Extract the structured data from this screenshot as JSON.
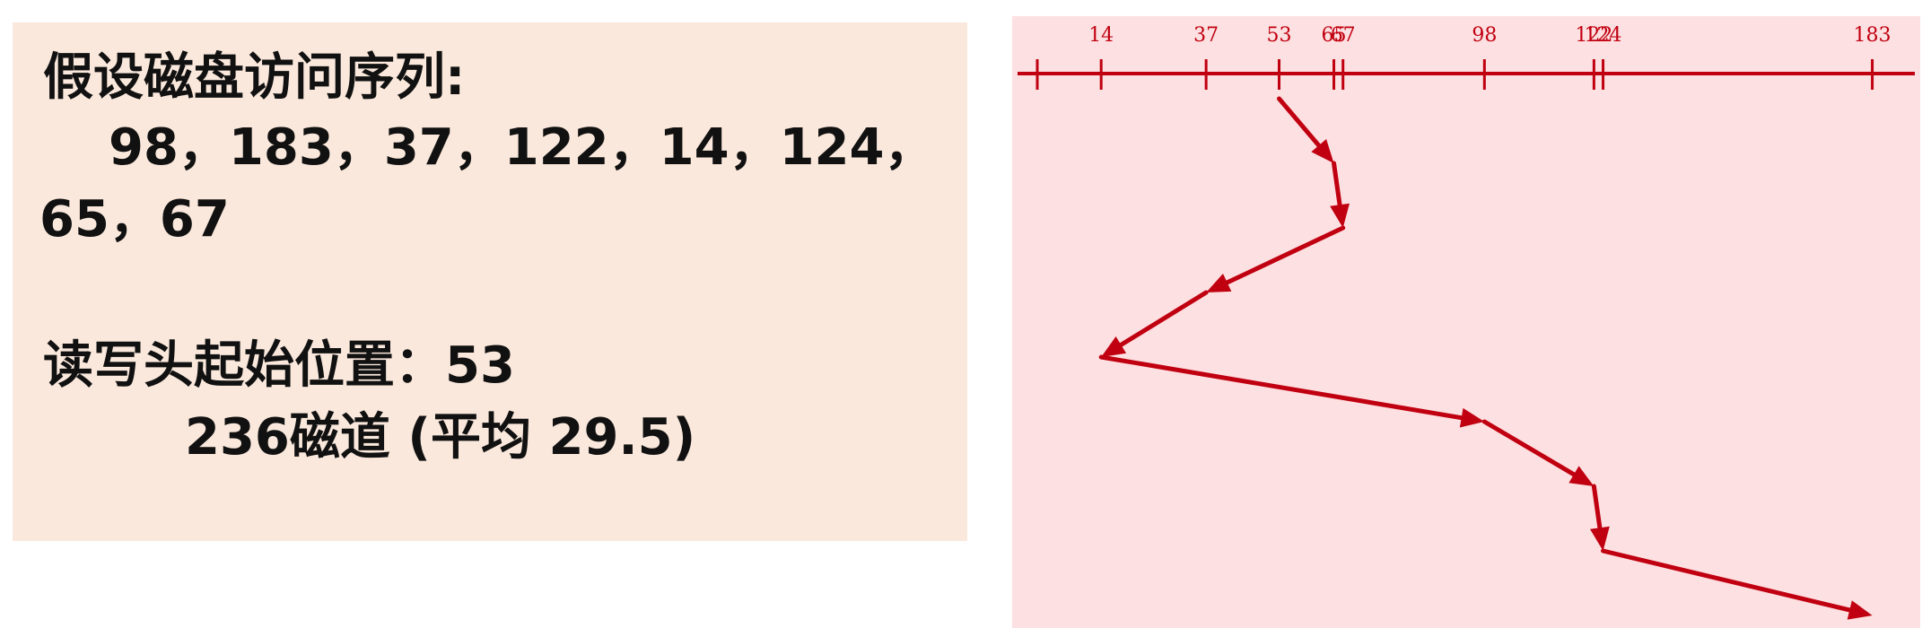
{
  "text_panel": {
    "heading": "假设磁盘访问序列:",
    "sequence_line1": "98，183，37，122，14，124，",
    "sequence_line2": "65，67",
    "start_label": "读写头起始位置：53",
    "result": "236磁道 (平均 29.5)"
  },
  "diagram": {
    "color": "#c00010",
    "axis_min": 0,
    "axis_max": 199,
    "ticks": [
      0,
      14,
      37,
      53,
      65,
      67,
      98,
      122,
      124,
      183
    ],
    "tick_labels": [
      "14",
      "37",
      "53",
      "65",
      "67",
      "98",
      "122",
      "124",
      "183"
    ],
    "path": [
      53,
      65,
      67,
      37,
      14,
      98,
      122,
      124,
      183
    ]
  }
}
